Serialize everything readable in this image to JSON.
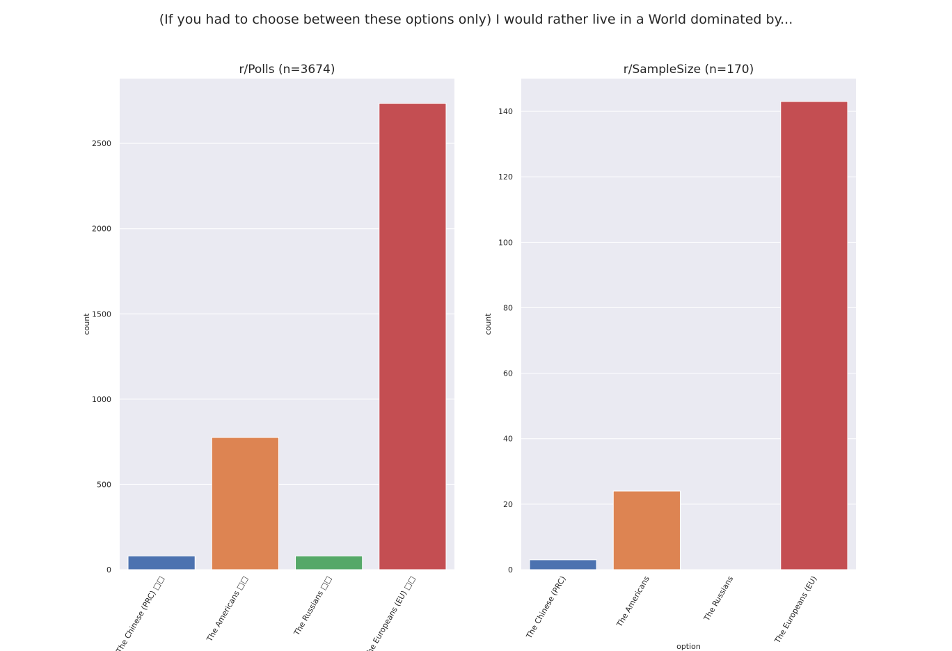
{
  "suptitle": "(If you had to choose between these options only) I would rather live in a World dominated by...",
  "chart_data": [
    {
      "type": "bar",
      "title": "r/Polls (n=3674)",
      "xlabel": "",
      "ylabel": "count",
      "ylim": [
        0,
        2880
      ],
      "yticks": [
        0,
        500,
        1000,
        1500,
        2000,
        2500
      ],
      "categories": [
        "The Chinese (PRC) □□",
        "The Americans □□",
        "The Russians □□",
        "The Europeans (EU) □□"
      ],
      "values": [
        80,
        775,
        80,
        2735
      ],
      "colors": [
        "#4c72b0",
        "#dd8452",
        "#55a868",
        "#c44e52"
      ],
      "grid": true
    },
    {
      "type": "bar",
      "title": "r/SampleSize (n=170)",
      "xlabel": "option",
      "ylabel": "count",
      "ylim": [
        0,
        150
      ],
      "yticks": [
        0,
        20,
        40,
        60,
        80,
        100,
        120,
        140
      ],
      "categories": [
        "The Chinese (PRC)",
        "The Americans",
        "The Russians",
        "The Europeans (EU)"
      ],
      "values": [
        3,
        24,
        0,
        143
      ],
      "colors": [
        "#4c72b0",
        "#dd8452",
        "#55a868",
        "#c44e52"
      ],
      "grid": true
    }
  ]
}
